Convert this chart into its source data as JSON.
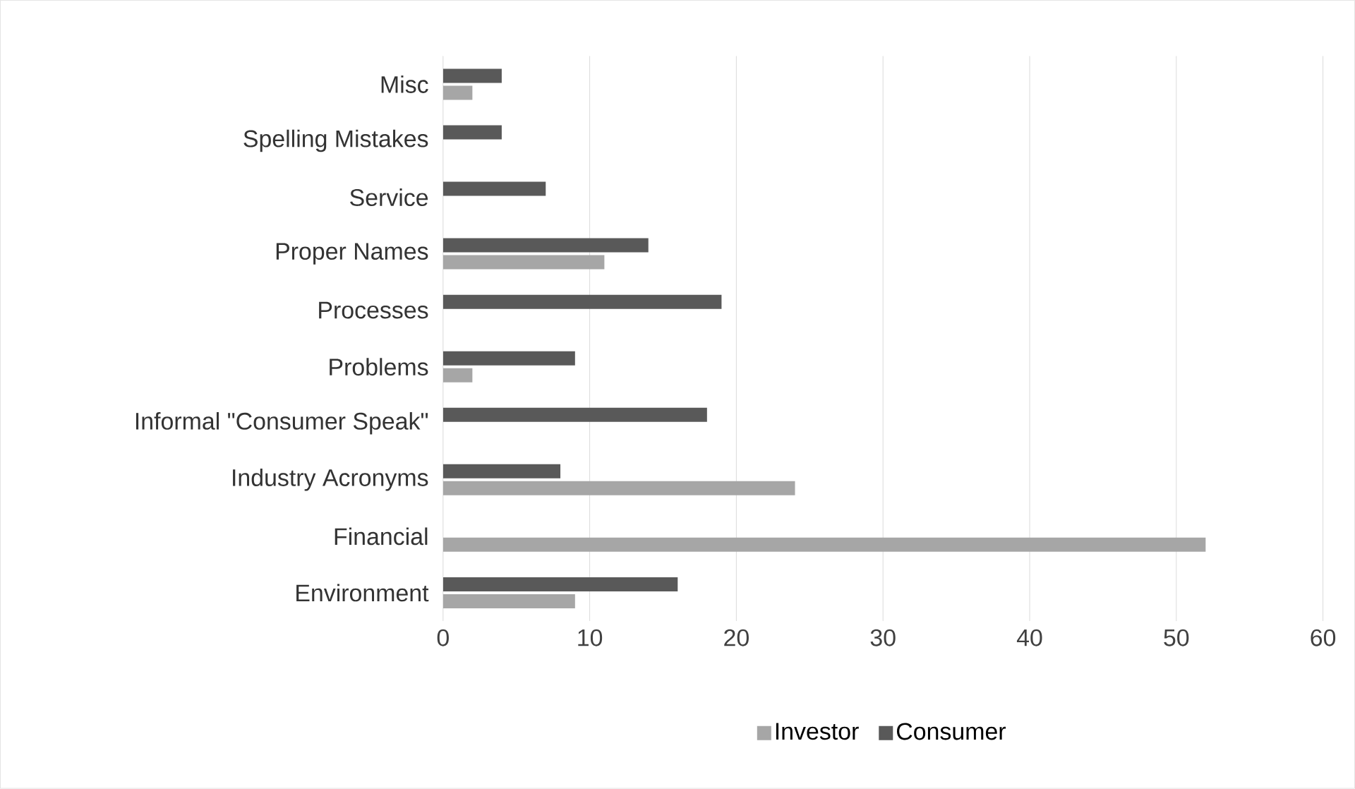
{
  "chart_data": {
    "type": "bar",
    "orientation": "horizontal",
    "categories": [
      "Misc",
      "Spelling Mistakes",
      "Service",
      "Proper Names",
      "Processes",
      "Problems",
      "Informal \"Consumer Speak\"",
      "Industry Acronyms",
      "Financial",
      "Environment"
    ],
    "series": [
      {
        "name": "Investor",
        "color": "#a6a6a6",
        "values": [
          2,
          null,
          null,
          11,
          null,
          2,
          null,
          24,
          52,
          9
        ]
      },
      {
        "name": "Consumer",
        "color": "#595959",
        "values": [
          4,
          4,
          7,
          14,
          19,
          9,
          18,
          8,
          null,
          16
        ]
      }
    ],
    "xlim": [
      0,
      60
    ],
    "xticks": [
      0,
      10,
      20,
      30,
      40,
      50,
      60
    ],
    "grid": "x",
    "legend": "bottom"
  }
}
